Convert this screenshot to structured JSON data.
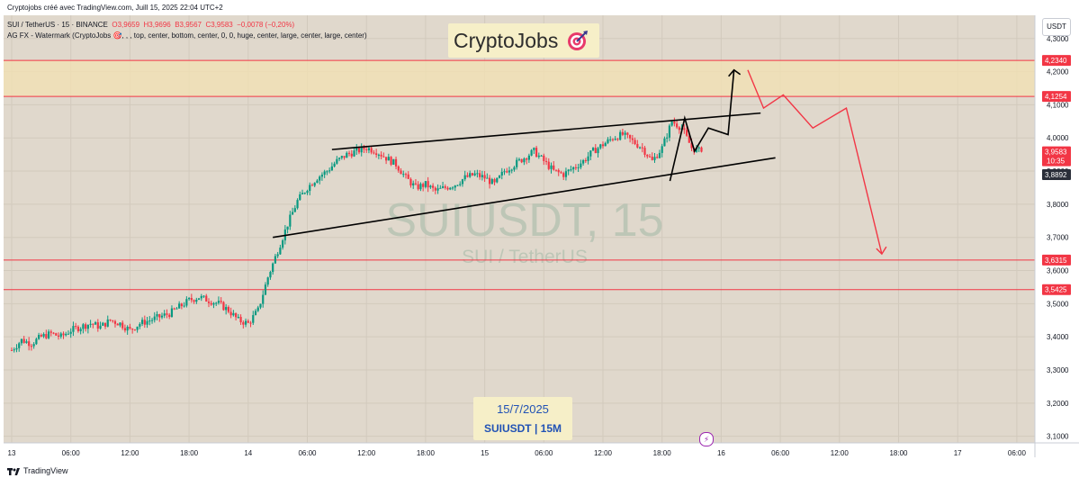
{
  "header": {
    "credit": "Cryptojobs créé avec TradingView.com, Juill 15, 2025 22:04 UTC+2",
    "symbol_line": {
      "name": "SUI / TetherUS · 15 · BINANCE",
      "open": "O3,9659",
      "high": "H3,9696",
      "low": "B3,9567",
      "close": "C3,9583",
      "change": "−0,0078 (−0,20%)"
    },
    "indicator": "AG FX - Watermark (CryptoJobs 🎯, , , top, center, bottom, center, 0, 0, huge, center, large, center, large, center)",
    "currency": "USDT"
  },
  "watermark": {
    "title": "CryptoJobs",
    "symbol_big": "SUIUSDT, 15",
    "symbol_desc": "SUI / TetherUS",
    "target_icon": "target-dart-icon"
  },
  "bottom_box": {
    "date": "15/7/2025",
    "symbol": "SUIUSDT | 15M"
  },
  "footer": {
    "brand": "TradingView",
    "brand_icon": "tradingview-logo-icon"
  },
  "colors": {
    "background": "#e0d8cc",
    "zone": "#f3e1b3",
    "up": "#089981",
    "down": "#f23645",
    "level_line": "#f23645",
    "pattern": "#000000",
    "projection": "#f23645",
    "watermark_text": "#b8c3b3"
  },
  "chart_data": {
    "type": "candlestick",
    "symbol": "SUI / TetherUS",
    "interval": "15",
    "exchange": "BINANCE",
    "ylim": [
      3.08,
      4.37
    ],
    "yticks": [
      3.1,
      3.2,
      3.3,
      3.4,
      3.5,
      3.6,
      3.7,
      3.8,
      3.9,
      4.0,
      4.1,
      4.2,
      4.3
    ],
    "ytick_labels": [
      "3,1000",
      "3,2000",
      "3,3000",
      "3,4000",
      "3,5000",
      "3,6000",
      "3,7000",
      "3,8000",
      "3,9000",
      "4,0000",
      "4,1000",
      "4,2000",
      "4,3000"
    ],
    "xticks": [
      "13",
      "06:00",
      "12:00",
      "18:00",
      "14",
      "06:00",
      "12:00",
      "18:00",
      "15",
      "06:00",
      "12:00",
      "18:00",
      "16",
      "06:00",
      "12:00",
      "18:00",
      "17",
      "06:00"
    ],
    "xtick_hours": [
      0,
      6,
      12,
      18,
      24,
      30,
      36,
      42,
      48,
      54,
      60,
      66,
      72,
      78,
      84,
      90,
      96,
      102
    ],
    "price_levels": [
      {
        "value": 4.234,
        "label": "4,2340"
      },
      {
        "value": 4.1254,
        "label": "4,1254"
      },
      {
        "value": 3.6315,
        "label": "3,6315"
      },
      {
        "value": 3.5425,
        "label": "3,5425"
      }
    ],
    "last_price": {
      "value": 3.9583,
      "label": "3,9583",
      "countdown": "10:35"
    },
    "marker_price": {
      "value": 3.8892,
      "label": "3,8892"
    },
    "zone": {
      "from": 4.1254,
      "to": 4.234
    },
    "close_path": [
      [
        0,
        3.36
      ],
      [
        1,
        3.39
      ],
      [
        2,
        3.38
      ],
      [
        3,
        3.4
      ],
      [
        4,
        3.41
      ],
      [
        5,
        3.4
      ],
      [
        6,
        3.42
      ],
      [
        7,
        3.43
      ],
      [
        8,
        3.44
      ],
      [
        9,
        3.43
      ],
      [
        10,
        3.45
      ],
      [
        11,
        3.44
      ],
      [
        12,
        3.42
      ],
      [
        13,
        3.44
      ],
      [
        14,
        3.45
      ],
      [
        15,
        3.46
      ],
      [
        16,
        3.47
      ],
      [
        17,
        3.49
      ],
      [
        18,
        3.51
      ],
      [
        19,
        3.52
      ],
      [
        20,
        3.51
      ],
      [
        21,
        3.5
      ],
      [
        22,
        3.48
      ],
      [
        23,
        3.45
      ],
      [
        24,
        3.44
      ],
      [
        25,
        3.48
      ],
      [
        26,
        3.58
      ],
      [
        27,
        3.66
      ],
      [
        28,
        3.74
      ],
      [
        29,
        3.81
      ],
      [
        30,
        3.85
      ],
      [
        31,
        3.88
      ],
      [
        32,
        3.9
      ],
      [
        33,
        3.93
      ],
      [
        34,
        3.95
      ],
      [
        35,
        3.96
      ],
      [
        36,
        3.97
      ],
      [
        37,
        3.96
      ],
      [
        38,
        3.94
      ],
      [
        39,
        3.92
      ],
      [
        40,
        3.88
      ],
      [
        41,
        3.85
      ],
      [
        42,
        3.86
      ],
      [
        43,
        3.84
      ],
      [
        44,
        3.85
      ],
      [
        45,
        3.86
      ],
      [
        46,
        3.88
      ],
      [
        47,
        3.89
      ],
      [
        48,
        3.88
      ],
      [
        49,
        3.86
      ],
      [
        50,
        3.9
      ],
      [
        51,
        3.92
      ],
      [
        52,
        3.94
      ],
      [
        53,
        3.96
      ],
      [
        54,
        3.93
      ],
      [
        55,
        3.9
      ],
      [
        56,
        3.89
      ],
      [
        57,
        3.91
      ],
      [
        58,
        3.93
      ],
      [
        59,
        3.96
      ],
      [
        60,
        3.98
      ],
      [
        61,
        4.0
      ],
      [
        62,
        4.01
      ],
      [
        63,
        3.99
      ],
      [
        64,
        3.97
      ],
      [
        65,
        3.93
      ],
      [
        66,
        3.97
      ],
      [
        67,
        4.05
      ],
      [
        68,
        4.03
      ],
      [
        69,
        3.97
      ],
      [
        70,
        3.9583
      ]
    ],
    "pattern_lines": [
      {
        "name": "upper-trendline",
        "points": [
          [
            32.5,
            3.965
          ],
          [
            76,
            4.075
          ]
        ]
      },
      {
        "name": "lower-trendline",
        "points": [
          [
            26.5,
            3.7
          ],
          [
            77.5,
            3.94
          ]
        ]
      }
    ],
    "black_projection": [
      [
        66.8,
        3.87
      ],
      [
        68.3,
        4.06
      ],
      [
        69.3,
        3.96
      ],
      [
        70.7,
        4.03
      ],
      [
        72.7,
        4.01
      ],
      [
        73.3,
        4.205
      ]
    ],
    "red_projection": [
      [
        74.7,
        4.205
      ],
      [
        76.3,
        4.09
      ],
      [
        78.3,
        4.13
      ],
      [
        81.3,
        4.03
      ],
      [
        84.7,
        4.09
      ],
      [
        88.3,
        3.65
      ]
    ]
  }
}
